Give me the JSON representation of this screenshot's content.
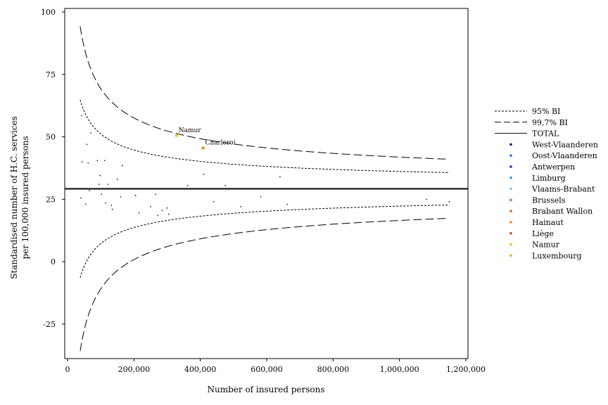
{
  "chart_data": {
    "type": "scatter",
    "title": "",
    "xlabel": "Number of insured persons",
    "ylabel_line1": "Standardised number of H.C. services",
    "ylabel_line2": "per 100,000 insured persons",
    "xlim": [
      0,
      1200000
    ],
    "ylim": [
      -40,
      100
    ],
    "x_ticks": [
      0,
      200000,
      400000,
      600000,
      800000,
      1000000,
      1200000
    ],
    "x_tick_labels": [
      "0",
      "200,000",
      "400,000",
      "600,000",
      "800,000",
      "1,000,000",
      "1,200,000"
    ],
    "y_ticks": [
      -25,
      0,
      25,
      50,
      75,
      100
    ],
    "y_tick_labels": [
      "-25",
      "0",
      "25",
      "50",
      "75",
      "100"
    ],
    "grid": false,
    "legend_position": "right",
    "total_rate": 29.2,
    "limits": {
      "x_range": [
        38000,
        1150000
      ],
      "ci95_k": 219.5,
      "ci997_k": 400.9
    },
    "legend": [
      {
        "label": "95% BI",
        "kind": "line",
        "dash": "dotted"
      },
      {
        "label": "99,7% BI",
        "kind": "line",
        "dash": "dashed"
      },
      {
        "label": "TOTAL",
        "kind": "line",
        "dash": "solid"
      },
      {
        "label": "West-Vlaanderen",
        "kind": "marker",
        "color": "#0a1a8c"
      },
      {
        "label": "Oost-Vlaanderen",
        "kind": "marker",
        "color": "#3b6fd6"
      },
      {
        "label": "Antwerpen",
        "kind": "marker",
        "color": "#1a2bd0"
      },
      {
        "label": "Limburg",
        "kind": "marker",
        "color": "#2b8ee0"
      },
      {
        "label": "Vlaams-Brabant",
        "kind": "marker",
        "color": "#7cc4f0"
      },
      {
        "label": "Brussels",
        "kind": "marker",
        "color": "#3cb44b"
      },
      {
        "label": "Brabant Wallon",
        "kind": "marker",
        "color": "#e06a2a"
      },
      {
        "label": "Hainaut",
        "kind": "marker",
        "color": "#f08a1a"
      },
      {
        "label": "Liège",
        "kind": "marker",
        "color": "#b5572a"
      },
      {
        "label": "Namur",
        "kind": "marker",
        "color": "#f2c21a"
      },
      {
        "label": "Luxembourg",
        "kind": "marker",
        "color": "#f0a830"
      }
    ],
    "highlighted": [
      {
        "label": "Namur",
        "x": 328000,
        "y": 50.5,
        "color": "#f2c21a"
      },
      {
        "label": "Charleroi",
        "x": 408000,
        "y": 45.5,
        "color": "#f08a1a"
      }
    ],
    "points": [
      [
        40000,
        25.5
      ],
      [
        42000,
        58.5
      ],
      [
        44000,
        40.0
      ],
      [
        55000,
        23.0
      ],
      [
        58000,
        47.0
      ],
      [
        62000,
        39.5
      ],
      [
        66000,
        28.5
      ],
      [
        70000,
        51.5
      ],
      [
        90000,
        40.5
      ],
      [
        95000,
        31.0
      ],
      [
        98000,
        34.5
      ],
      [
        102000,
        27.0
      ],
      [
        112000,
        40.5
      ],
      [
        115000,
        23.5
      ],
      [
        122000,
        31.0
      ],
      [
        132000,
        22.5
      ],
      [
        135000,
        21.0
      ],
      [
        150000,
        33.0
      ],
      [
        160000,
        26.0
      ],
      [
        165000,
        38.5
      ],
      [
        205000,
        26.5
      ],
      [
        215000,
        19.5
      ],
      [
        250000,
        22.0
      ],
      [
        265000,
        27.0
      ],
      [
        272000,
        18.5
      ],
      [
        285000,
        20.5
      ],
      [
        300000,
        21.5
      ],
      [
        305000,
        19.0
      ],
      [
        362000,
        30.5
      ],
      [
        410000,
        35.0
      ],
      [
        440000,
        24.0
      ],
      [
        475000,
        30.5
      ],
      [
        522000,
        22.0
      ],
      [
        582000,
        26.0
      ],
      [
        640000,
        34.0
      ],
      [
        662000,
        23.0
      ],
      [
        1082000,
        25.0
      ],
      [
        1150000,
        24.0
      ]
    ]
  }
}
